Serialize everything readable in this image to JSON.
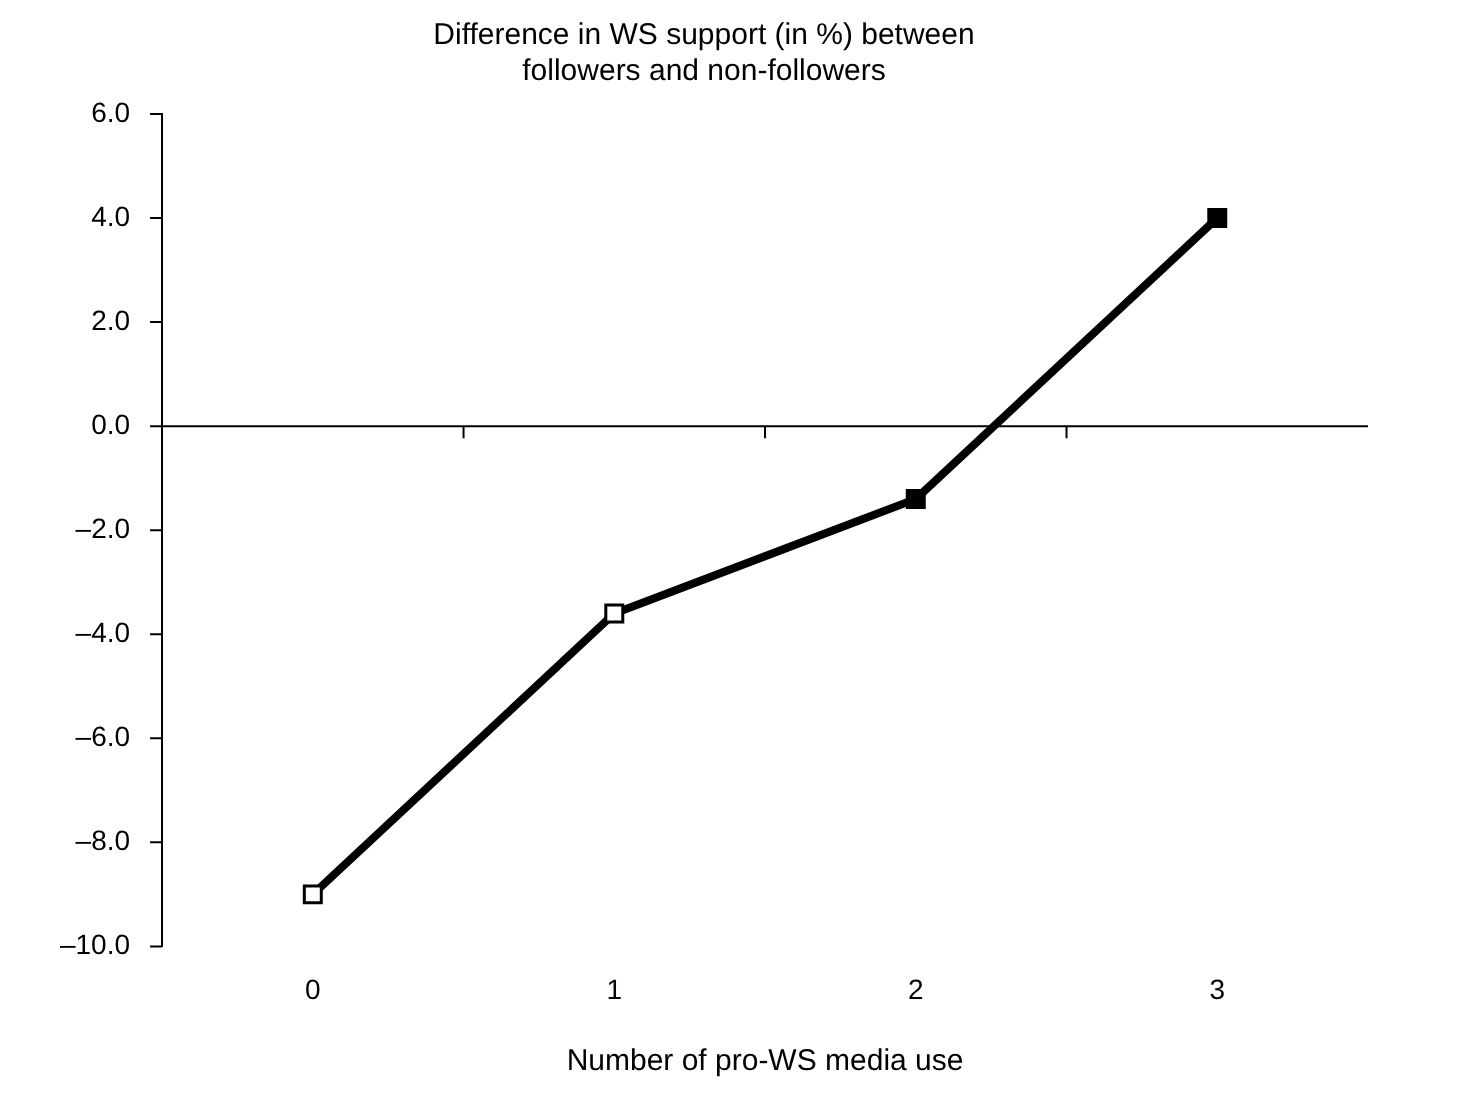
{
  "chart_data": {
    "type": "line",
    "title": [
      "Difference in WS support (in %) between",
      "followers and non-followers"
    ],
    "xlabel": "Number of pro-WS media use",
    "categories": [
      "0",
      "1",
      "2",
      "3"
    ],
    "series": [
      {
        "color": "#000000",
        "colors": [
          "#ffffff",
          "#ffffff",
          "#000000",
          "#000000"
        ],
        "values": [
          -9.0,
          -3.6,
          -1.4,
          4.0
        ]
      }
    ],
    "ylim": [
      -10,
      6
    ],
    "yticks": [
      {
        "value": -10,
        "label": "–10.0"
      },
      {
        "value": -8,
        "label": "–8.0"
      },
      {
        "value": -6,
        "label": "–6.0"
      },
      {
        "value": -4,
        "label": "–4.0"
      },
      {
        "value": -2,
        "label": "–2.0"
      },
      {
        "value": 0,
        "label": "0.0"
      },
      {
        "value": 2,
        "label": "2.0"
      },
      {
        "value": 4,
        "label": "4.0"
      },
      {
        "value": 6,
        "label": "6.0"
      }
    ],
    "ref_lines": [
      {
        "axis": "y",
        "value": 0,
        "color": "#000000",
        "line_style": "solid"
      }
    ],
    "marker": "square",
    "line_style": "solid",
    "grid": false,
    "legend": false
  }
}
